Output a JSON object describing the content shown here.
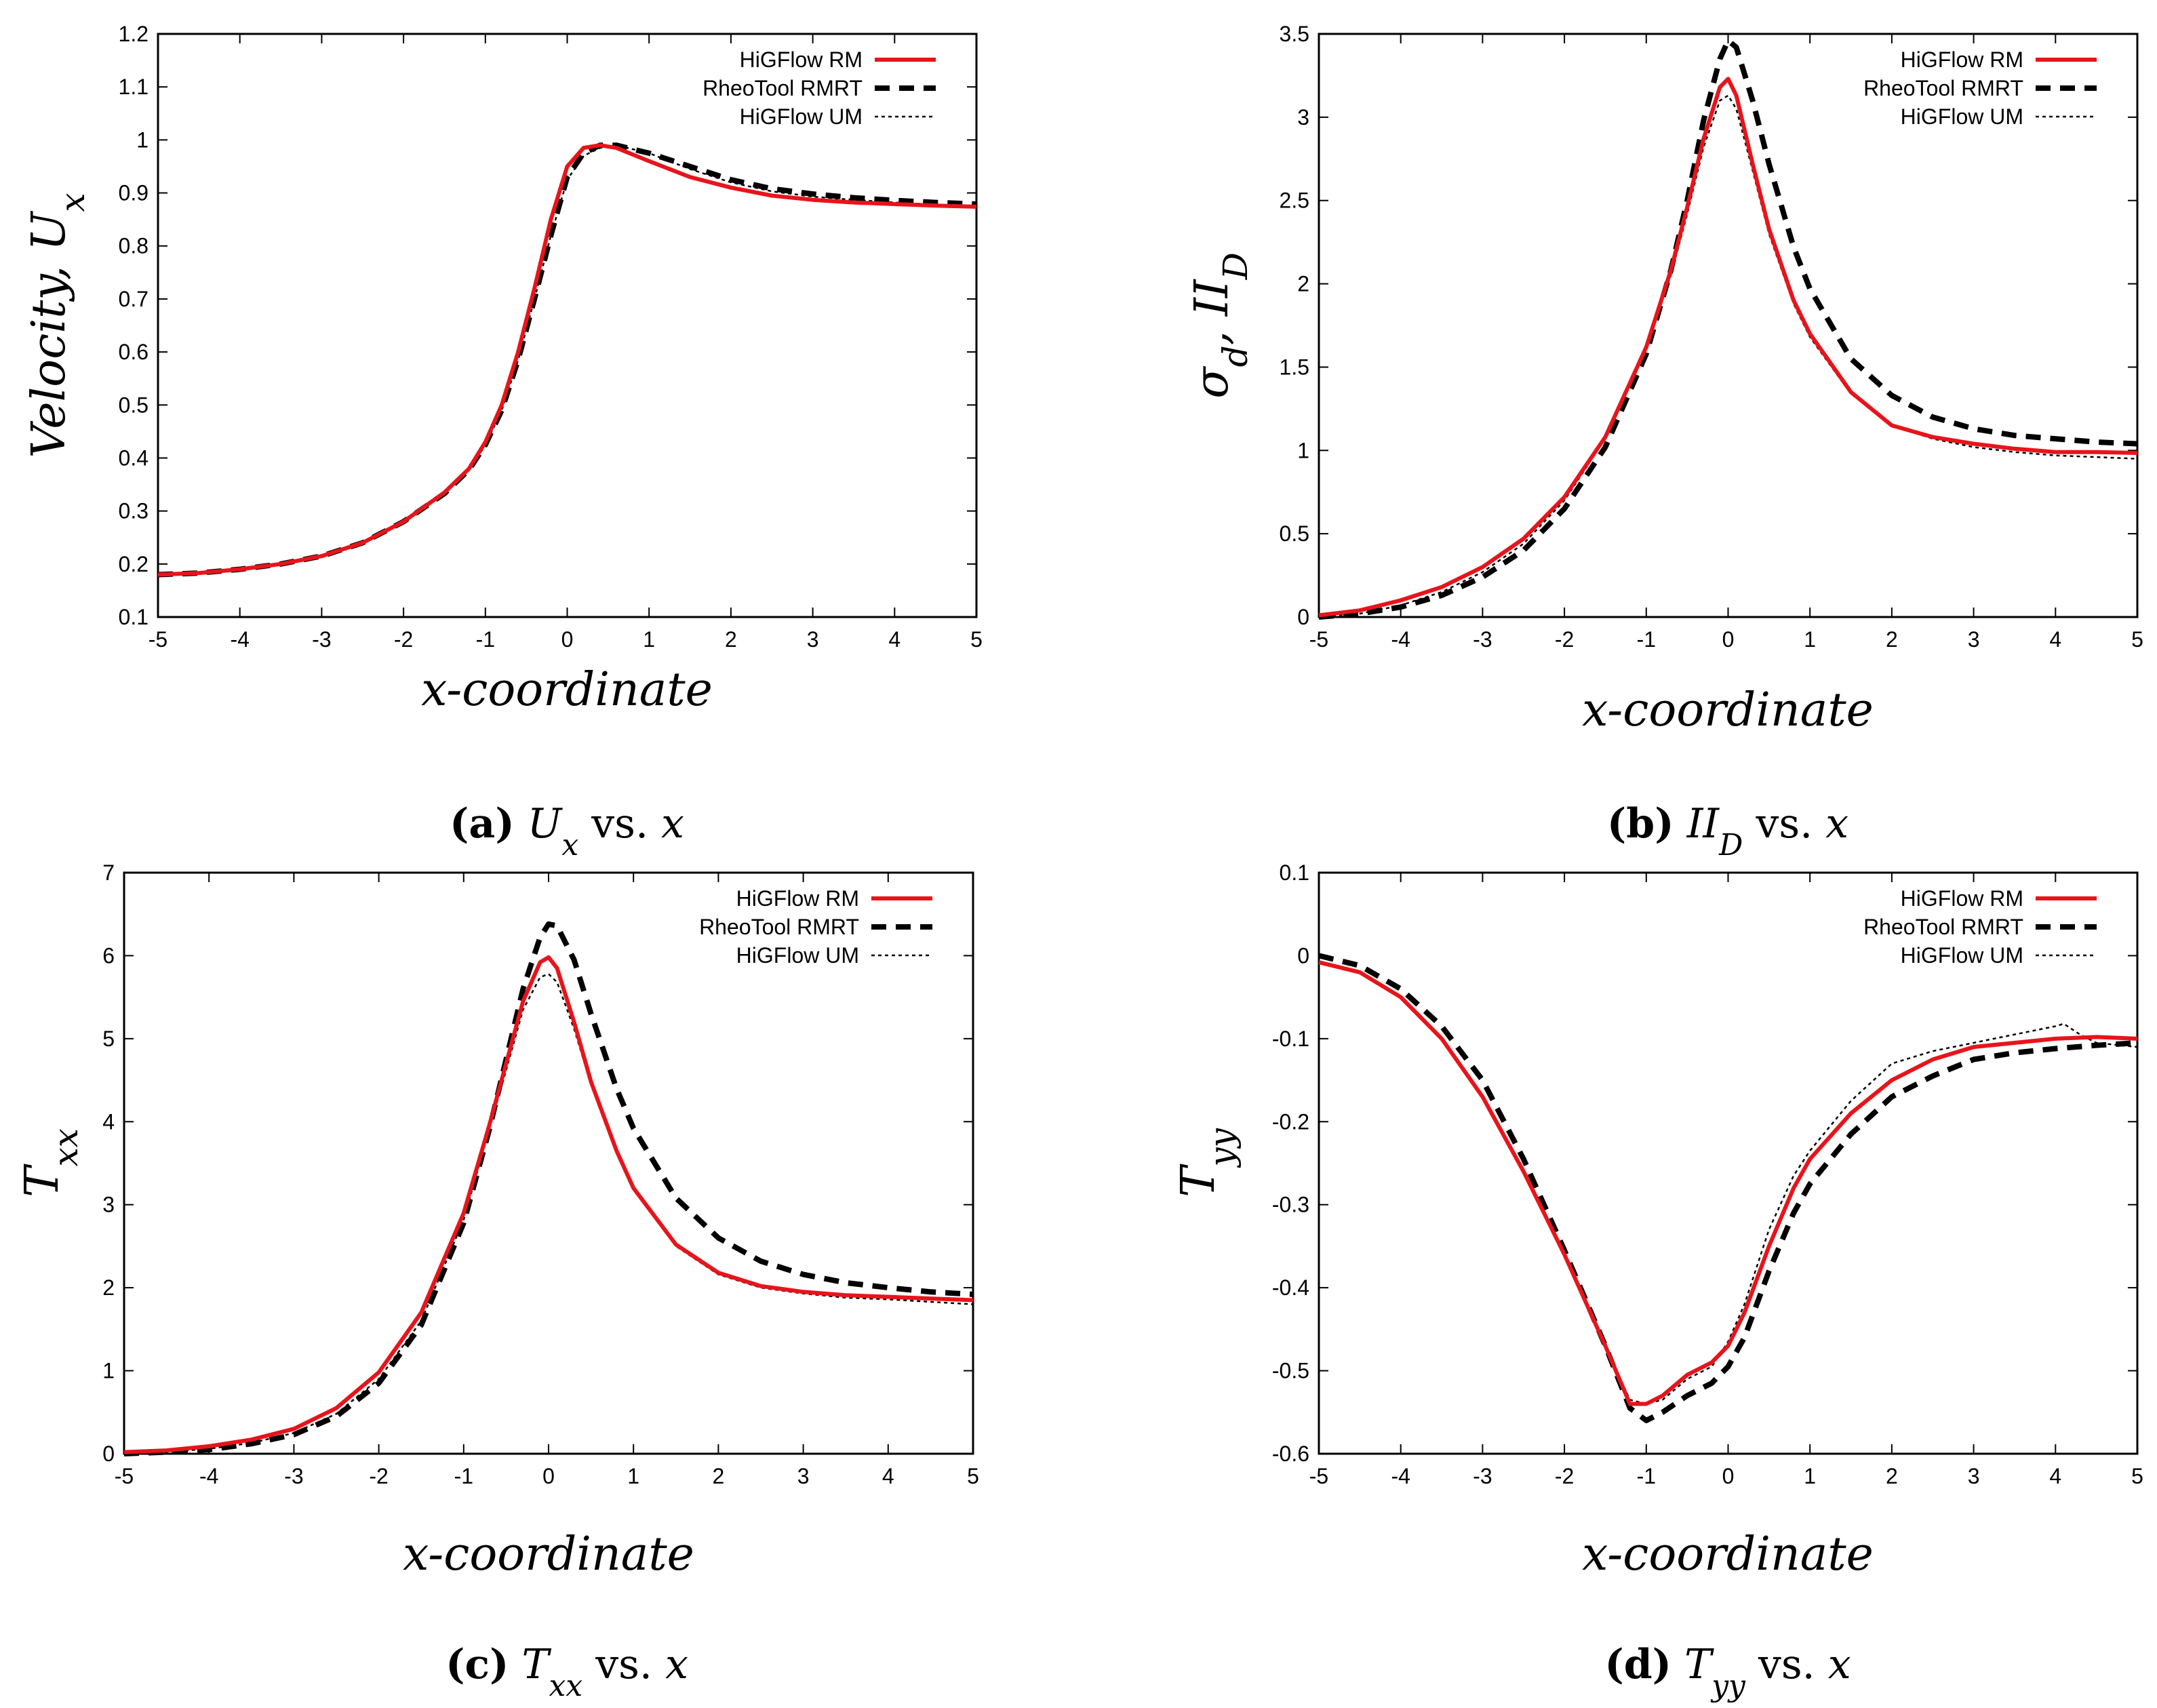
{
  "colors": {
    "hig_rm": "#e8141b",
    "rheo": "#000000",
    "hig_um": "#000000",
    "axis": "#000000"
  },
  "legend": [
    "HiGFlow RM",
    "RheoTool RMRT",
    "HiGFlow UM"
  ],
  "chart_data": [
    {
      "type": "line",
      "xlabel": "x-coordinate",
      "ylabel": "Velocity, U",
      "ylabel_sub": "x",
      "xlim": [
        -5,
        5
      ],
      "ylim": [
        0.1,
        1.2
      ],
      "xticks": [
        "-5",
        "-4",
        "-3",
        "-2",
        "-1",
        "0",
        "1",
        "2",
        "3",
        "4",
        "5"
      ],
      "yticks": [
        "0.1",
        "0.2",
        "0.3",
        "0.4",
        "0.5",
        "0.6",
        "0.7",
        "0.8",
        "0.9",
        "1",
        "1.1",
        "1.2"
      ],
      "caption": {
        "letter": "(a)",
        "math": "U",
        "sub": "x",
        "rest": " vs. ",
        "var": "x"
      },
      "series": [
        {
          "name": "HiGFlow RM",
          "x": [
            -5,
            -4.5,
            -4,
            -3.5,
            -3,
            -2.5,
            -2,
            -1.5,
            -1.2,
            -1,
            -0.8,
            -0.6,
            -0.4,
            -0.2,
            0,
            0.2,
            0.4,
            0.6,
            1,
            1.5,
            2,
            2.5,
            3,
            3.5,
            4,
            4.5,
            5
          ],
          "y": [
            0.18,
            0.183,
            0.19,
            0.2,
            0.215,
            0.24,
            0.28,
            0.335,
            0.38,
            0.43,
            0.5,
            0.6,
            0.72,
            0.85,
            0.95,
            0.985,
            0.99,
            0.985,
            0.96,
            0.93,
            0.91,
            0.895,
            0.887,
            0.882,
            0.879,
            0.876,
            0.874
          ]
        },
        {
          "name": "RheoTool RMRT",
          "x": [
            -5,
            -4.5,
            -4,
            -3.5,
            -3,
            -2.5,
            -2,
            -1.5,
            -1.2,
            -1,
            -0.8,
            -0.6,
            -0.4,
            -0.2,
            0,
            0.2,
            0.4,
            0.6,
            1,
            1.5,
            2,
            2.5,
            3,
            3.5,
            4,
            4.5,
            5
          ],
          "y": [
            0.18,
            0.183,
            0.19,
            0.2,
            0.215,
            0.24,
            0.28,
            0.333,
            0.378,
            0.425,
            0.49,
            0.585,
            0.7,
            0.82,
            0.93,
            0.975,
            0.99,
            0.99,
            0.975,
            0.95,
            0.925,
            0.908,
            0.898,
            0.891,
            0.886,
            0.882,
            0.879
          ]
        },
        {
          "name": "HiGFlow UM",
          "x": [
            -5,
            -4.5,
            -4,
            -3.5,
            -3,
            -2.5,
            -2,
            -1.5,
            -1.2,
            -1,
            -0.8,
            -0.6,
            -0.4,
            -0.2,
            0,
            0.2,
            0.4,
            0.6,
            1,
            1.5,
            2,
            2.5,
            3,
            3.5,
            4,
            4.5,
            5
          ],
          "y": [
            0.18,
            0.183,
            0.19,
            0.2,
            0.215,
            0.24,
            0.28,
            0.333,
            0.377,
            0.424,
            0.49,
            0.585,
            0.7,
            0.82,
            0.925,
            0.97,
            0.985,
            0.99,
            0.975,
            0.945,
            0.92,
            0.903,
            0.893,
            0.887,
            0.882,
            0.878,
            0.875
          ]
        }
      ]
    },
    {
      "type": "line",
      "xlabel": "x-coordinate",
      "ylabel": "σ",
      "ylabel_sub": "d",
      "ylabel_rest": ", II",
      "ylabel_sub2": "D",
      "xlim": [
        -5,
        5
      ],
      "ylim": [
        0,
        3.5
      ],
      "xticks": [
        "-5",
        "-4",
        "-3",
        "-2",
        "-1",
        "0",
        "1",
        "2",
        "3",
        "4",
        "5"
      ],
      "yticks": [
        "0",
        "0.5",
        "1",
        "1.5",
        "2",
        "2.5",
        "3",
        "3.5"
      ],
      "caption": {
        "letter": "(b)",
        "math": "II",
        "sub": "D",
        "rest": " vs. ",
        "var": "x"
      },
      "series": [
        {
          "name": "HiGFlow RM",
          "x": [
            -5,
            -4.5,
            -4,
            -3.5,
            -3,
            -2.5,
            -2,
            -1.5,
            -1,
            -0.7,
            -0.5,
            -0.3,
            -0.1,
            0,
            0.1,
            0.3,
            0.5,
            0.8,
            1,
            1.5,
            2,
            2.5,
            3,
            3.5,
            4,
            4.5,
            5
          ],
          "y": [
            0.01,
            0.04,
            0.1,
            0.18,
            0.3,
            0.47,
            0.72,
            1.08,
            1.62,
            2.08,
            2.46,
            2.87,
            3.18,
            3.23,
            3.13,
            2.72,
            2.33,
            1.9,
            1.7,
            1.35,
            1.15,
            1.08,
            1.04,
            1.01,
            0.99,
            0.99,
            0.985
          ]
        },
        {
          "name": "RheoTool RMRT",
          "x": [
            -5,
            -4.5,
            -4,
            -3.5,
            -3,
            -2.5,
            -2,
            -1.5,
            -1,
            -0.7,
            -0.5,
            -0.3,
            -0.1,
            0,
            0.1,
            0.3,
            0.5,
            0.8,
            1,
            1.5,
            2,
            2.5,
            3,
            3.5,
            4,
            4.5,
            5
          ],
          "y": [
            0.0,
            0.02,
            0.06,
            0.13,
            0.24,
            0.4,
            0.65,
            1.02,
            1.58,
            2.08,
            2.5,
            2.98,
            3.35,
            3.46,
            3.42,
            3.1,
            2.72,
            2.22,
            1.97,
            1.55,
            1.33,
            1.2,
            1.13,
            1.09,
            1.07,
            1.05,
            1.04
          ]
        },
        {
          "name": "HiGFlow UM",
          "x": [
            -5,
            -4.5,
            -4,
            -3.5,
            -3,
            -2.5,
            -2,
            -1.5,
            -1,
            -0.7,
            -0.5,
            -0.3,
            -0.1,
            0,
            0.1,
            0.3,
            0.5,
            0.8,
            1,
            1.5,
            2,
            2.5,
            3,
            3.5,
            4,
            4.5,
            5
          ],
          "y": [
            0.0,
            0.02,
            0.07,
            0.15,
            0.27,
            0.44,
            0.7,
            1.07,
            1.61,
            2.05,
            2.42,
            2.82,
            3.1,
            3.13,
            3.05,
            2.68,
            2.3,
            1.88,
            1.68,
            1.34,
            1.15,
            1.07,
            1.02,
            0.99,
            0.97,
            0.96,
            0.95
          ]
        }
      ]
    },
    {
      "type": "line",
      "xlabel": "x-coordinate",
      "ylabel": "T",
      "ylabel_sub": "xx",
      "xlim": [
        -5,
        5
      ],
      "ylim": [
        0,
        7
      ],
      "xticks": [
        "-5",
        "-4",
        "-3",
        "-2",
        "-1",
        "0",
        "1",
        "2",
        "3",
        "4",
        "5"
      ],
      "yticks": [
        "0",
        "1",
        "2",
        "3",
        "4",
        "5",
        "6",
        "7"
      ],
      "caption": {
        "letter": "(c)",
        "math": "T",
        "sub": "xx",
        "rest": " vs. ",
        "var": "x"
      },
      "series": [
        {
          "name": "HiGFlow RM",
          "x": [
            -5,
            -4.5,
            -4,
            -3.5,
            -3,
            -2.5,
            -2,
            -1.5,
            -1,
            -0.7,
            -0.5,
            -0.3,
            -0.1,
            0,
            0.1,
            0.3,
            0.5,
            0.8,
            1,
            1.5,
            2,
            2.5,
            3,
            3.5,
            4,
            4.5,
            5
          ],
          "y": [
            0.02,
            0.04,
            0.09,
            0.17,
            0.3,
            0.55,
            0.98,
            1.7,
            2.9,
            3.95,
            4.7,
            5.45,
            5.92,
            5.98,
            5.85,
            5.2,
            4.48,
            3.65,
            3.2,
            2.52,
            2.18,
            2.02,
            1.95,
            1.91,
            1.89,
            1.87,
            1.85
          ]
        },
        {
          "name": "RheoTool RMRT",
          "x": [
            -5,
            -4.5,
            -4,
            -3.5,
            -3,
            -2.5,
            -2,
            -1.5,
            -1,
            -0.7,
            -0.5,
            -0.3,
            -0.1,
            0,
            0.1,
            0.3,
            0.5,
            0.8,
            1,
            1.5,
            2,
            2.5,
            3,
            3.5,
            4,
            4.5,
            5
          ],
          "y": [
            0.0,
            0.02,
            0.05,
            0.12,
            0.23,
            0.45,
            0.85,
            1.55,
            2.78,
            3.9,
            4.75,
            5.6,
            6.22,
            6.38,
            6.36,
            5.95,
            5.3,
            4.4,
            3.92,
            3.08,
            2.6,
            2.32,
            2.16,
            2.06,
            2.0,
            1.95,
            1.92
          ]
        },
        {
          "name": "HiGFlow UM",
          "x": [
            -5,
            -4.5,
            -4,
            -3.5,
            -3,
            -2.5,
            -2,
            -1.5,
            -1,
            -0.7,
            -0.5,
            -0.3,
            -0.1,
            0,
            0.1,
            0.3,
            0.5,
            0.8,
            1,
            1.5,
            2,
            2.5,
            3,
            3.5,
            4,
            4.5,
            5
          ],
          "y": [
            0.0,
            0.02,
            0.06,
            0.13,
            0.25,
            0.48,
            0.9,
            1.6,
            2.82,
            3.9,
            4.62,
            5.35,
            5.74,
            5.78,
            5.68,
            5.12,
            4.45,
            3.62,
            3.18,
            2.5,
            2.16,
            2.0,
            1.93,
            1.88,
            1.86,
            1.83,
            1.8
          ]
        }
      ]
    },
    {
      "type": "line",
      "xlabel": "x-coordinate",
      "ylabel": "T",
      "ylabel_sub": "yy",
      "xlim": [
        -5,
        5
      ],
      "ylim": [
        -0.6,
        0.1
      ],
      "xticks": [
        "-5",
        "-4",
        "-3",
        "-2",
        "-1",
        "0",
        "1",
        "2",
        "3",
        "4",
        "5"
      ],
      "yticks": [
        "-0.6",
        "-0.5",
        "-0.4",
        "-0.3",
        "-0.2",
        "-0.1",
        "0",
        "0.1"
      ],
      "caption": {
        "letter": "(d)",
        "math": "T",
        "sub": "yy",
        "rest": " vs. ",
        "var": "x"
      },
      "series": [
        {
          "name": "HiGFlow RM",
          "x": [
            -5,
            -4.5,
            -4,
            -3.5,
            -3,
            -2.5,
            -2,
            -1.5,
            -1.2,
            -1,
            -0.8,
            -0.5,
            -0.2,
            0,
            0.2,
            0.5,
            0.8,
            1,
            1.5,
            2,
            2.5,
            3,
            3.5,
            4,
            4.5,
            5
          ],
          "y": [
            -0.008,
            -0.02,
            -0.05,
            -0.1,
            -0.17,
            -0.26,
            -0.36,
            -0.47,
            -0.54,
            -0.54,
            -0.53,
            -0.505,
            -0.49,
            -0.47,
            -0.43,
            -0.35,
            -0.28,
            -0.245,
            -0.19,
            -0.15,
            -0.125,
            -0.11,
            -0.105,
            -0.1,
            -0.098,
            -0.1
          ]
        },
        {
          "name": "RheoTool RMRT",
          "x": [
            -5,
            -4.5,
            -4,
            -3.5,
            -3,
            -2.5,
            -2,
            -1.5,
            -1.2,
            -1,
            -0.8,
            -0.5,
            -0.2,
            0,
            0.2,
            0.5,
            0.8,
            1,
            1.5,
            2,
            2.5,
            3,
            3.5,
            4,
            4.5,
            5
          ],
          "y": [
            0.0,
            -0.012,
            -0.04,
            -0.085,
            -0.15,
            -0.245,
            -0.355,
            -0.47,
            -0.545,
            -0.56,
            -0.55,
            -0.53,
            -0.515,
            -0.495,
            -0.46,
            -0.38,
            -0.31,
            -0.275,
            -0.215,
            -0.17,
            -0.145,
            -0.125,
            -0.117,
            -0.112,
            -0.108,
            -0.105
          ]
        },
        {
          "name": "HiGFlow UM",
          "x": [
            -5,
            -4.5,
            -4,
            -3.5,
            -3,
            -2.5,
            -2,
            -1.5,
            -1.2,
            -1,
            -0.8,
            -0.5,
            -0.2,
            0,
            0.2,
            0.5,
            0.8,
            1,
            1.5,
            2,
            2.5,
            3,
            3.5,
            4,
            4.1,
            4.3,
            4.5,
            5
          ],
          "y": [
            -0.008,
            -0.02,
            -0.05,
            -0.1,
            -0.17,
            -0.26,
            -0.36,
            -0.47,
            -0.535,
            -0.54,
            -0.535,
            -0.51,
            -0.495,
            -0.465,
            -0.42,
            -0.33,
            -0.265,
            -0.235,
            -0.175,
            -0.13,
            -0.115,
            -0.105,
            -0.095,
            -0.085,
            -0.082,
            -0.095,
            -0.105,
            -0.11
          ]
        }
      ]
    }
  ]
}
